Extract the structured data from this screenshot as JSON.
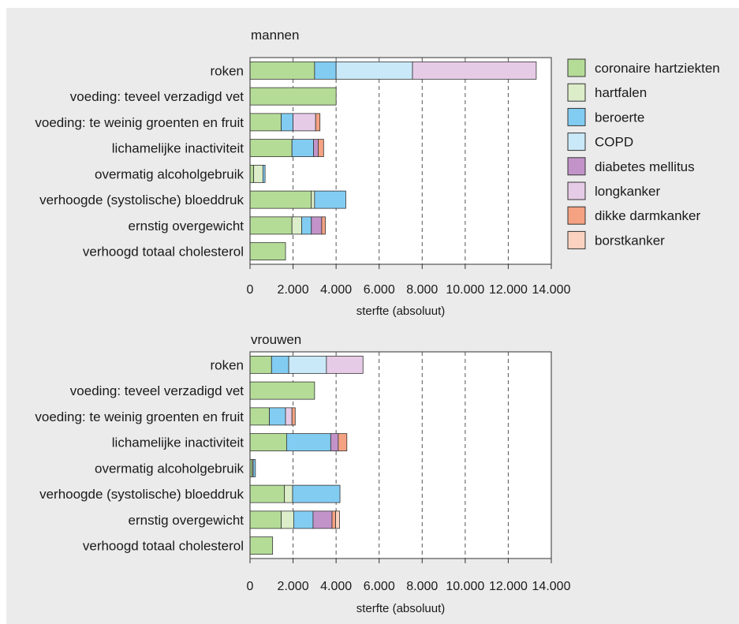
{
  "chart_data": [
    {
      "type": "bar",
      "orientation": "horizontal",
      "stacked": true,
      "title": "mannen",
      "xlabel": "sterfte (absoluut)",
      "ylabel": "",
      "xlim": [
        0,
        14000
      ],
      "xticks": [
        "0",
        "2.000",
        "4.000",
        "6.000",
        "8.000",
        "10.000",
        "12.000",
        "14.000"
      ],
      "grid": "vertical dashed",
      "categories": [
        "roken",
        "voeding: teveel verzadigd vet",
        "voeding: te weinig groenten en fruit",
        "lichamelijke inactiviteit",
        "overmatig alcoholgebruik",
        "verhoogde (systolische) bloeddruk",
        "ernstig overgewicht",
        "verhoogd totaal cholesterol"
      ],
      "series": [
        {
          "name": "coronaire hartziekten",
          "values": [
            3000,
            4000,
            1450,
            1950,
            170,
            2850,
            1950,
            1650
          ]
        },
        {
          "name": "hartfalen",
          "values": [
            0,
            0,
            0,
            0,
            430,
            150,
            450,
            0
          ]
        },
        {
          "name": "beroerte",
          "values": [
            1000,
            0,
            550,
            1000,
            100,
            1450,
            450,
            0
          ]
        },
        {
          "name": "COPD",
          "values": [
            3550,
            0,
            0,
            0,
            0,
            0,
            0,
            0
          ]
        },
        {
          "name": "diabetes mellitus",
          "values": [
            0,
            0,
            0,
            220,
            0,
            0,
            480,
            0
          ]
        },
        {
          "name": "longkanker",
          "values": [
            5750,
            0,
            1050,
            0,
            0,
            0,
            0,
            0
          ]
        },
        {
          "name": "dikke darmkanker",
          "values": [
            0,
            0,
            200,
            250,
            0,
            0,
            170,
            0
          ]
        },
        {
          "name": "borstkanker",
          "values": [
            0,
            0,
            0,
            0,
            0,
            0,
            0,
            0
          ]
        }
      ]
    },
    {
      "type": "bar",
      "orientation": "horizontal",
      "stacked": true,
      "title": "vrouwen",
      "xlabel": "sterfte (absoluut)",
      "ylabel": "",
      "xlim": [
        0,
        14000
      ],
      "xticks": [
        "0",
        "2.000",
        "4.000",
        "6.000",
        "8.000",
        "10.000",
        "12.000",
        "14.000"
      ],
      "grid": "vertical dashed",
      "categories": [
        "roken",
        "voeding: teveel verzadigd vet",
        "voeding: te weinig groenten en fruit",
        "lichamelijke inactiviteit",
        "overmatig alcoholgebruik",
        "verhoogde (systolische) bloeddruk",
        "ernstig overgewicht",
        "verhoogd totaal cholesterol"
      ],
      "series": [
        {
          "name": "coronaire hartziekten",
          "values": [
            1000,
            3000,
            900,
            1700,
            100,
            1600,
            1450,
            1050
          ]
        },
        {
          "name": "hartfalen",
          "values": [
            0,
            0,
            0,
            0,
            50,
            380,
            580,
            0
          ]
        },
        {
          "name": "beroerte",
          "values": [
            800,
            0,
            750,
            2050,
            100,
            2200,
            900,
            0
          ]
        },
        {
          "name": "COPD",
          "values": [
            1750,
            0,
            0,
            0,
            0,
            0,
            0,
            0
          ]
        },
        {
          "name": "diabetes mellitus",
          "values": [
            0,
            0,
            0,
            350,
            0,
            0,
            880,
            0
          ]
        },
        {
          "name": "longkanker",
          "values": [
            1700,
            0,
            300,
            0,
            0,
            0,
            0,
            0
          ]
        },
        {
          "name": "dikke darmkanker",
          "values": [
            0,
            0,
            150,
            400,
            0,
            0,
            170,
            0
          ]
        },
        {
          "name": "borstkanker",
          "values": [
            0,
            0,
            0,
            0,
            0,
            0,
            180,
            0
          ]
        }
      ]
    }
  ],
  "legend": {
    "placement": "right",
    "items": [
      {
        "label": "coronaire hartziekten",
        "color": "#b5dc97"
      },
      {
        "label": "hartfalen",
        "color": "#dcedc9"
      },
      {
        "label": "beroerte",
        "color": "#82ccf2"
      },
      {
        "label": "COPD",
        "color": "#cae9f8"
      },
      {
        "label": "diabetes mellitus",
        "color": "#c293c8"
      },
      {
        "label": "longkanker",
        "color": "#e6cbe6"
      },
      {
        "label": "dikke darmkanker",
        "color": "#f5a283"
      },
      {
        "label": "borstkanker",
        "color": "#fbd2bf"
      }
    ]
  }
}
